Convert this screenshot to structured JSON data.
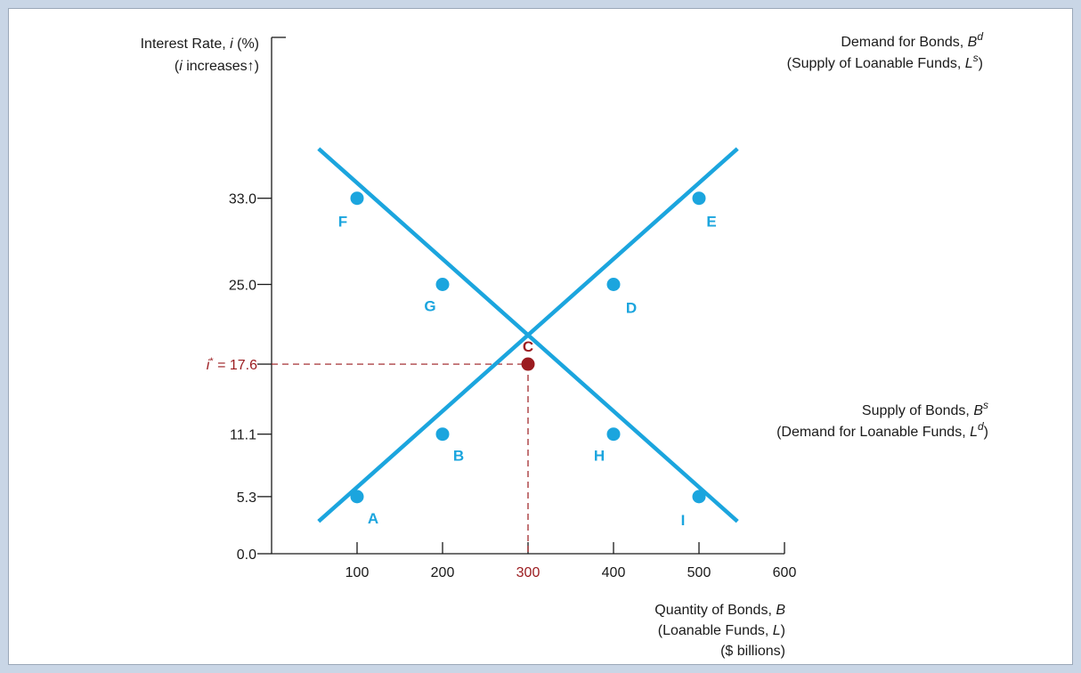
{
  "chart_data": {
    "type": "line",
    "ylabel_line1": [
      "Interest Rate, ",
      "i",
      " (%)"
    ],
    "ylabel_line2": [
      "(",
      "i",
      " increases↑)"
    ],
    "xlabel_lines": [
      [
        "Quantity of Bonds, ",
        "B"
      ],
      [
        "(Loanable Funds, ",
        "L",
        ")"
      ],
      [
        "($ billions)"
      ]
    ],
    "xlim": [
      0,
      600
    ],
    "ylim": [
      0,
      38
    ],
    "x_ticks": [
      "100",
      "200",
      "300",
      "400",
      "500",
      "600"
    ],
    "y_ticks": [
      {
        "value": 0.0,
        "label": "0.0"
      },
      {
        "value": 5.3,
        "label": "5.3"
      },
      {
        "value": 11.1,
        "label": "11.1"
      },
      {
        "value": 17.6,
        "label": "17.6",
        "highlight": true
      },
      {
        "value": 25.0,
        "label": "25.0"
      },
      {
        "value": 33.0,
        "label": "33.0"
      }
    ],
    "highlight_x_tick": "300",
    "equilibrium": {
      "x": 300,
      "y": 17.6,
      "label": "C",
      "y_label": [
        "i",
        "*",
        " = 17.6"
      ]
    },
    "series": [
      {
        "key": "demand",
        "label_lines": [
          [
            "Demand for Bonds, ",
            "B",
            "d"
          ],
          [
            "(Supply of Loanable Funds, ",
            "L",
            "s",
            ")"
          ]
        ],
        "line_extent": [
          [
            55,
            3
          ],
          [
            545,
            37.6
          ]
        ],
        "points": [
          {
            "label": "A",
            "x": 100,
            "y": 5.3
          },
          {
            "label": "B",
            "x": 200,
            "y": 11.1
          },
          {
            "label": "D",
            "x": 400,
            "y": 25.0
          },
          {
            "label": "E",
            "x": 500,
            "y": 33.0
          }
        ]
      },
      {
        "key": "supply",
        "label_lines": [
          [
            "Supply of Bonds, ",
            "B",
            "s"
          ],
          [
            "(Demand for Loanable Funds, ",
            "L",
            "d",
            ")"
          ]
        ],
        "line_extent": [
          [
            55,
            37.6
          ],
          [
            545,
            3
          ]
        ],
        "points": [
          {
            "label": "F",
            "x": 100,
            "y": 33.0
          },
          {
            "label": "G",
            "x": 200,
            "y": 25.0
          },
          {
            "label": "H",
            "x": 400,
            "y": 11.1
          },
          {
            "label": "I",
            "x": 500,
            "y": 5.3
          }
        ]
      }
    ],
    "colors": {
      "curve": "#1ba5de",
      "equilibrium": "#9b1b1f",
      "axis": "#1a1a1a",
      "background": "#c9d6e6"
    }
  }
}
